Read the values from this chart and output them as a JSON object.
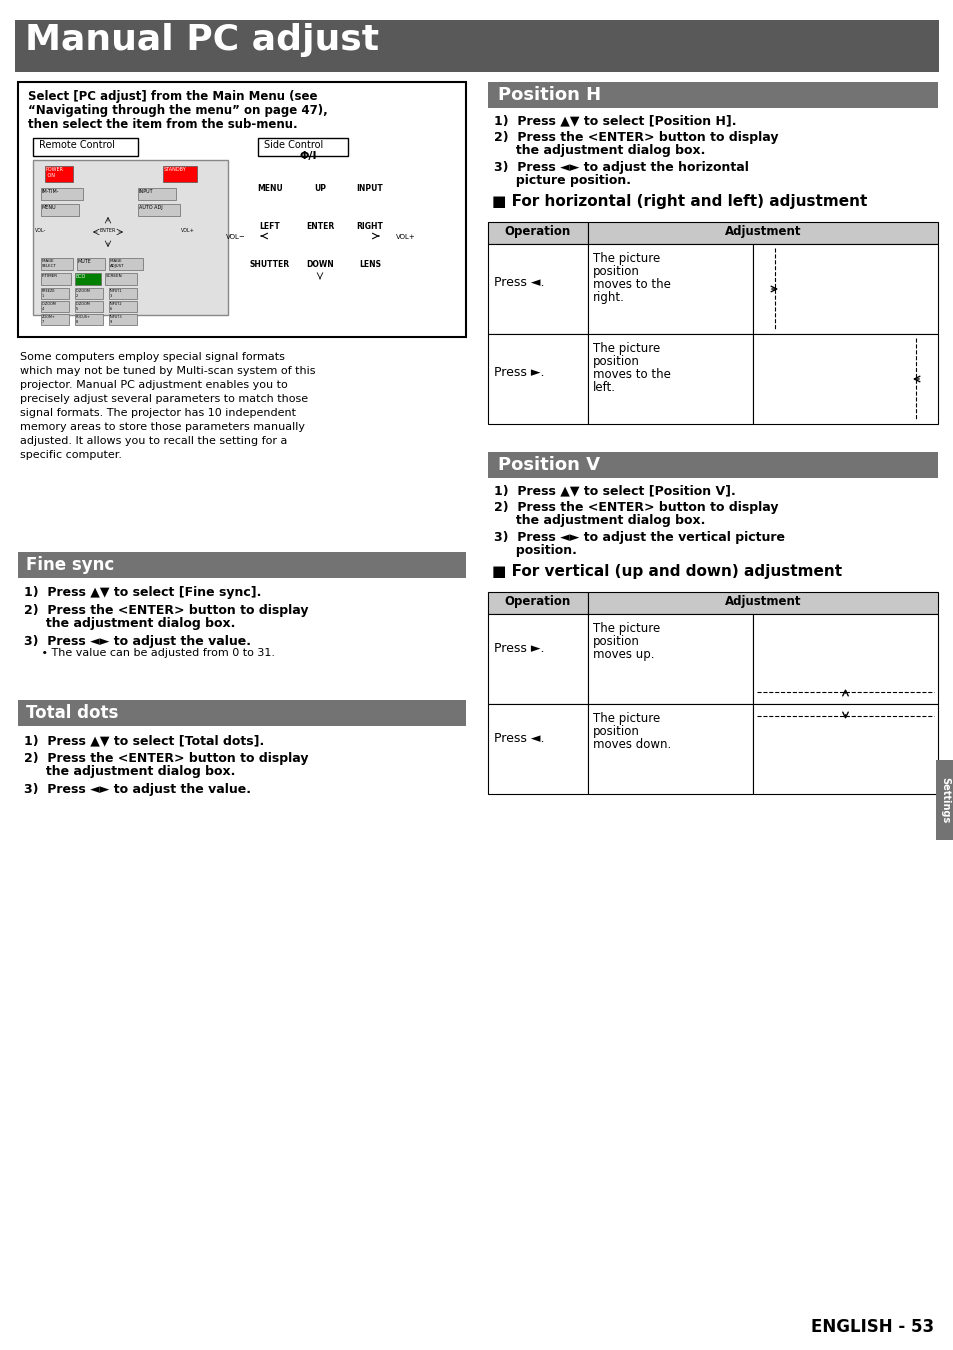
{
  "title": "Manual PC adjust",
  "title_bg": "#595959",
  "title_color": "#ffffff",
  "page_bg": "#ffffff",
  "section_header_bg": "#737373",
  "section_header_color": "#ffffff",
  "select_box_text_line1": "Select [PC adjust] from the Main Menu (see",
  "select_box_text_line2": "“Navigating through the menu” on page 47),",
  "select_box_text_line3": "then select the item from the sub-menu.",
  "intro_lines": [
    "Some computers employ special signal formats",
    "which may not be tuned by Multi-scan system of this",
    "projector. Manual PC adjustment enables you to",
    "precisely adjust several parameters to match those",
    "signal formats. The projector has 10 independent",
    "memory areas to store those parameters manually",
    "adjusted. It allows you to recall the setting for a",
    "specific computer."
  ],
  "fine_sync_header": "Fine sync",
  "fine_sync_step1": "1)  Press ▲▼ to select [Fine sync].",
  "fine_sync_step2a": "2)  Press the <ENTER> button to display",
  "fine_sync_step2b": "     the adjustment dialog box.",
  "fine_sync_step3a": "3)  Press ◄► to adjust the value.",
  "fine_sync_step3b": "     • The value can be adjusted from 0 to 31.",
  "total_dots_header": "Total dots",
  "total_dots_step1": "1)  Press ▲▼ to select [Total dots].",
  "total_dots_step2a": "2)  Press the <ENTER> button to display",
  "total_dots_step2b": "     the adjustment dialog box.",
  "total_dots_step3": "3)  Press ◄► to adjust the value.",
  "position_h_header": "Position H",
  "ph_step1": "1)  Press ▲▼ to select [Position H].",
  "ph_step2a": "2)  Press the <ENTER> button to display",
  "ph_step2b": "     the adjustment dialog box.",
  "ph_step3a": "3)  Press ◄► to adjust the horizontal",
  "ph_step3b": "     picture position.",
  "ph_subheader": "■ For horizontal (right and left) adjustment",
  "ph_op1": "Press ◄.",
  "ph_desc1a": "The picture",
  "ph_desc1b": "position",
  "ph_desc1c": "moves to the",
  "ph_desc1d": "right.",
  "ph_op2": "Press ►.",
  "ph_desc2a": "The picture",
  "ph_desc2b": "position",
  "ph_desc2c": "moves to the",
  "ph_desc2d": "left.",
  "position_v_header": "Position V",
  "pv_step1": "1)  Press ▲▼ to select [Position V].",
  "pv_step2a": "2)  Press the <ENTER> button to display",
  "pv_step2b": "     the adjustment dialog box.",
  "pv_step3a": "3)  Press ◄► to adjust the vertical picture",
  "pv_step3b": "     position.",
  "pv_subheader": "■ For vertical (up and down) adjustment",
  "pv_op1": "Press ►.",
  "pv_desc1a": "The picture",
  "pv_desc1b": "position",
  "pv_desc1c": "moves up.",
  "pv_op2": "Press ◄.",
  "pv_desc2a": "The picture",
  "pv_desc2b": "position",
  "pv_desc2c": "moves down.",
  "op_col_header": "Operation",
  "adj_col_header": "Adjustment",
  "table_hdr_bg": "#c8c8c8",
  "settings_label": "Settings",
  "page_label": "ENGLISH - 53"
}
